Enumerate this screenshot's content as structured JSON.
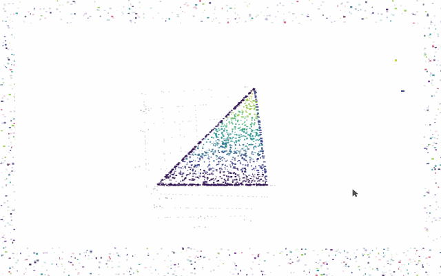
{
  "scene": {
    "type": "3d-surface-render",
    "colormap": [
      "#2d0f4f",
      "#3b3f87",
      "#2f6f8f",
      "#21908d",
      "#3fae74",
      "#8fc64a",
      "#c7cf3a"
    ],
    "background": "#ffffff",
    "axis_color": "#c8c8cc",
    "render_state": "fragmented"
  },
  "pointer": {
    "icon": "mouse-pointer-icon"
  }
}
